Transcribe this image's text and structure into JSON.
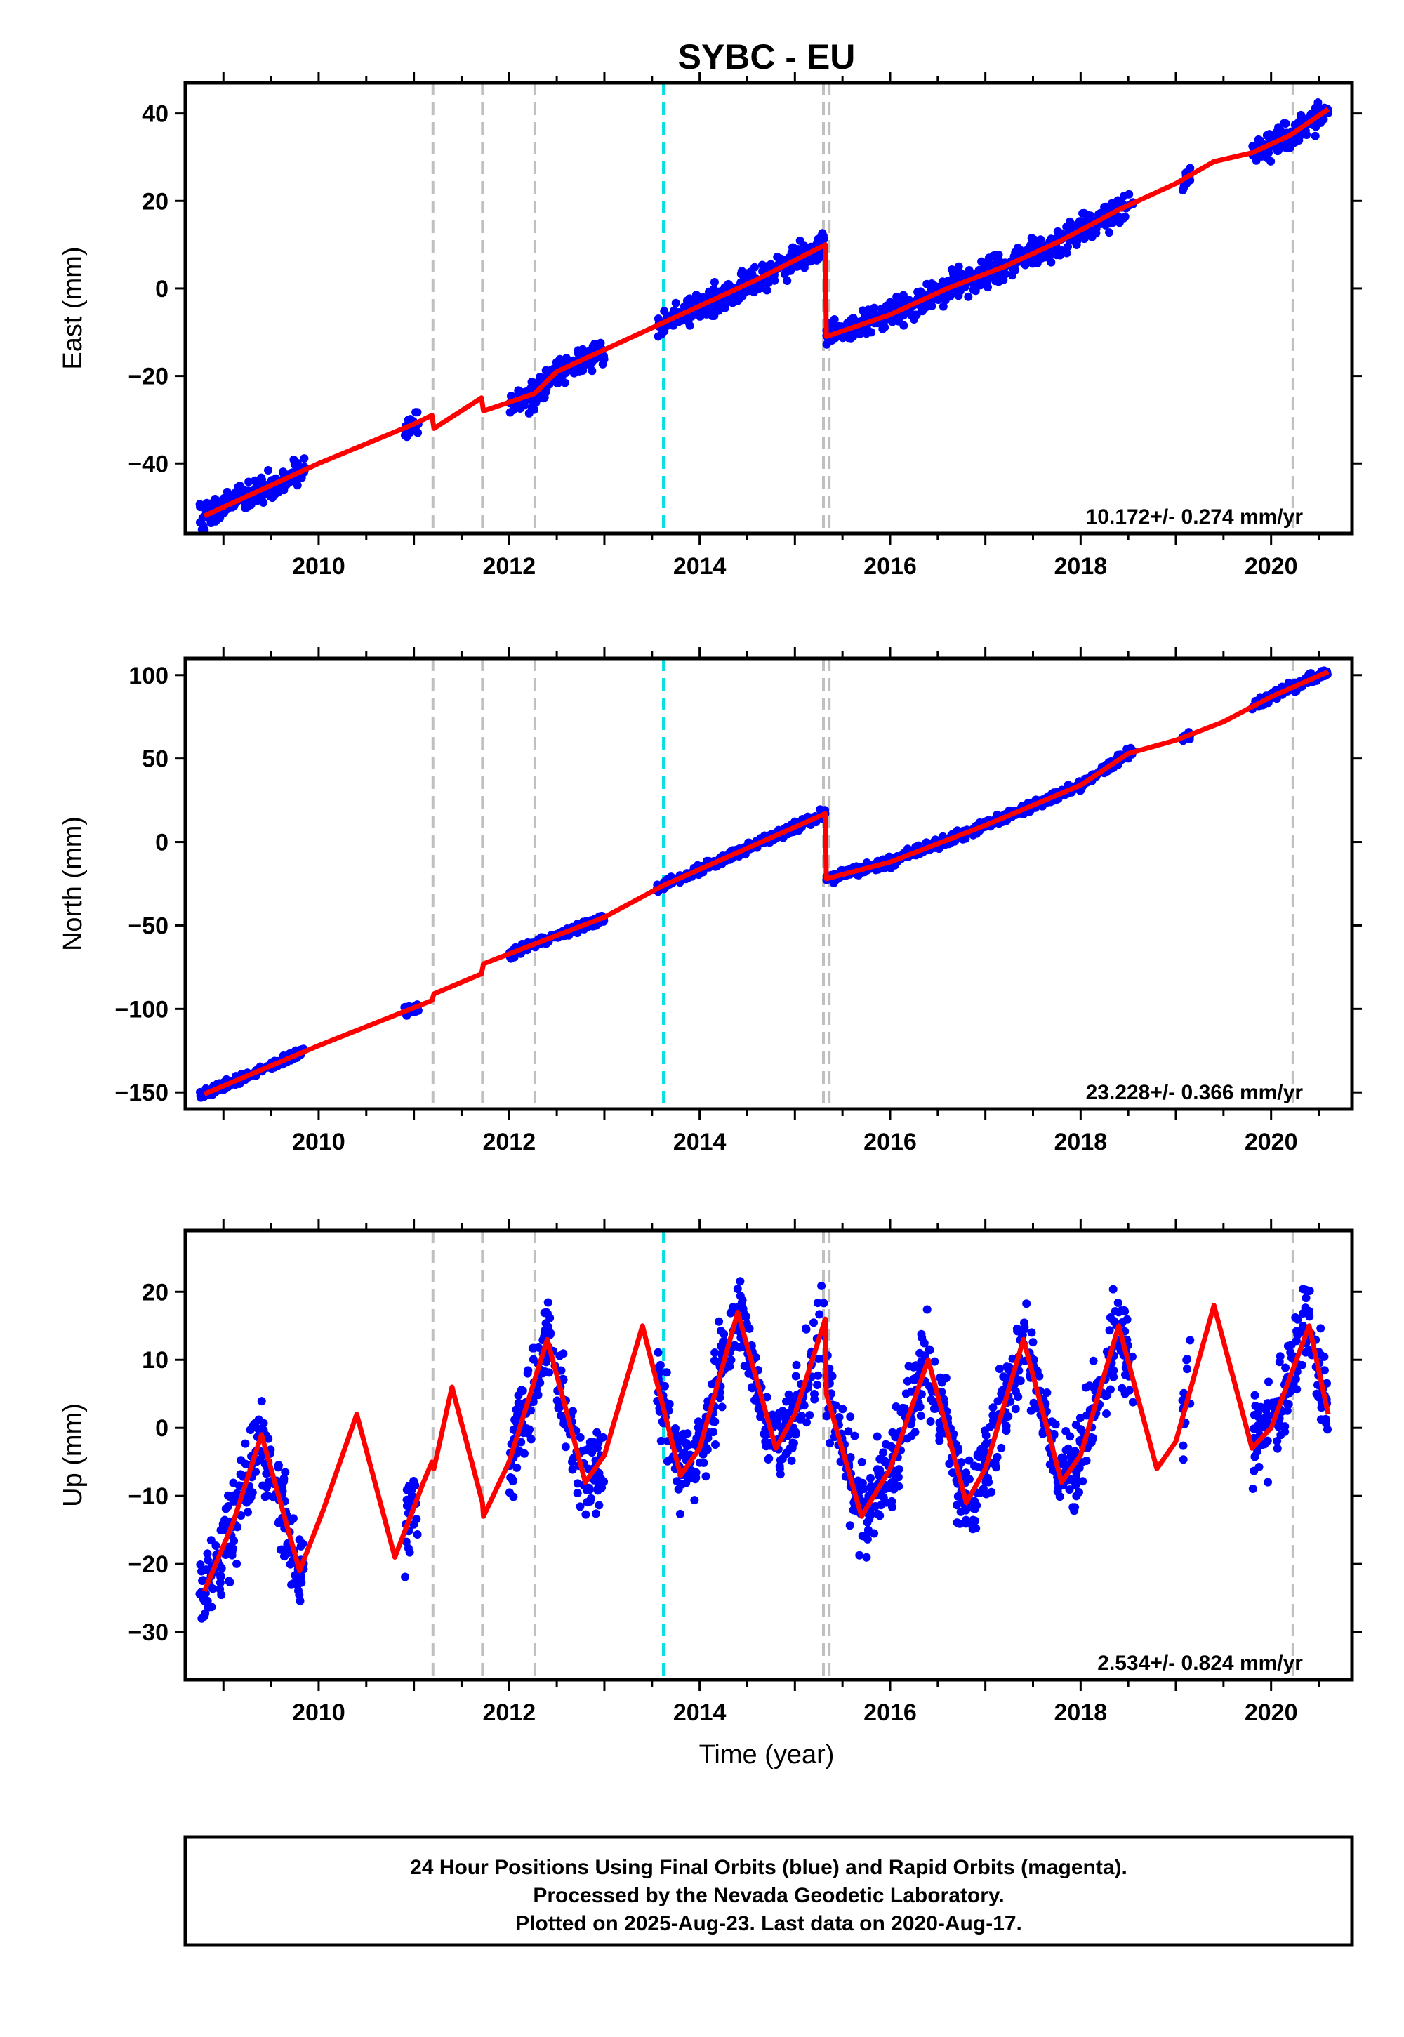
{
  "title": "SYBC - EU",
  "xlabel": "Time (year)",
  "footer": {
    "line1": "24 Hour Positions Using Final Orbits (blue) and Rapid Orbits (magenta).",
    "line2": "Processed by the Nevada Geodetic Laboratory.",
    "line3": "Plotted on 2025-Aug-23. Last data on 2020-Aug-17."
  },
  "colors": {
    "data": "#0000ff",
    "model": "#ff0000",
    "step_gray": "#c0c0c0",
    "step_cyan": "#00e0e0"
  },
  "chart_data": [
    {
      "type": "scatter",
      "component": "east",
      "ylabel": "East (mm)",
      "xlim": [
        2008.6,
        2020.85
      ],
      "ylim": [
        -56,
        47
      ],
      "xticks": [
        2010,
        2012,
        2014,
        2016,
        2018,
        2020
      ],
      "yticks": [
        -40,
        -20,
        0,
        20,
        40
      ],
      "rate_text": "10.172+/- 0.274 mm/yr",
      "steps_gray": [
        2011.2,
        2011.72,
        2012.27,
        2015.3,
        2015.36,
        2020.23
      ],
      "steps_cyan": [
        2013.62
      ],
      "model": {
        "x": [
          2008.8,
          2009.5,
          2010.0,
          2011.0,
          2011.19,
          2011.21,
          2011.71,
          2011.73,
          2012.27,
          2012.5,
          2013.0,
          2013.6,
          2014.0,
          2014.6,
          2015.32,
          2015.33,
          2016.0,
          2016.6,
          2017.2,
          2017.8,
          2018.4,
          2019.0,
          2019.4,
          2019.8,
          2020.2,
          2020.6
        ],
        "y": [
          -52,
          -45,
          -40,
          -31,
          -29,
          -32,
          -25,
          -28,
          -24,
          -19,
          -14,
          -8,
          -4,
          2,
          10,
          -11,
          -6,
          0,
          5,
          11,
          18,
          24,
          29,
          31,
          35,
          41
        ]
      },
      "data_ranges": [
        [
          2008.75,
          2009.85
        ],
        [
          2010.9,
          2011.05
        ],
        [
          2012.0,
          2013.0
        ],
        [
          2013.55,
          2015.32
        ],
        [
          2015.33,
          2018.55
        ],
        [
          2019.07,
          2019.15
        ],
        [
          2019.8,
          2020.6
        ]
      ],
      "noise": 2.2
    },
    {
      "type": "scatter",
      "component": "north",
      "ylabel": "North (mm)",
      "xlim": [
        2008.6,
        2020.85
      ],
      "ylim": [
        -160,
        110
      ],
      "xticks": [
        2010,
        2012,
        2014,
        2016,
        2018,
        2020
      ],
      "yticks": [
        -150,
        -100,
        -50,
        0,
        50,
        100
      ],
      "rate_text": "23.228+/- 0.366 mm/yr",
      "steps_gray": [
        2011.2,
        2011.72,
        2012.27,
        2015.3,
        2015.36,
        2020.23
      ],
      "steps_cyan": [
        2013.62
      ],
      "model": {
        "x": [
          2008.8,
          2010.0,
          2011.19,
          2011.21,
          2011.71,
          2011.73,
          2013.0,
          2013.62,
          2015.32,
          2015.33,
          2016.0,
          2017.0,
          2018.0,
          2018.5,
          2019.0,
          2019.5,
          2020.0,
          2020.6
        ],
        "y": [
          -151,
          -122,
          -95,
          -91,
          -79,
          -73,
          -45,
          -26,
          17,
          -22,
          -12,
          10,
          34,
          53,
          61,
          72,
          87,
          102
        ]
      },
      "data_ranges": [
        [
          2008.75,
          2009.85
        ],
        [
          2010.9,
          2011.05
        ],
        [
          2012.0,
          2013.0
        ],
        [
          2013.55,
          2015.32
        ],
        [
          2015.33,
          2018.55
        ],
        [
          2019.07,
          2019.15
        ],
        [
          2019.8,
          2020.6
        ]
      ],
      "noise": 2.0
    },
    {
      "type": "scatter",
      "component": "up",
      "ylabel": "Up (mm)",
      "xlim": [
        2008.6,
        2020.85
      ],
      "ylim": [
        -37,
        29
      ],
      "xticks": [
        2010,
        2012,
        2014,
        2016,
        2018,
        2020
      ],
      "yticks": [
        -30,
        -20,
        -10,
        0,
        10,
        20
      ],
      "rate_text": "2.534+/- 0.824 mm/yr",
      "steps_gray": [
        2011.2,
        2011.72,
        2012.27,
        2015.3,
        2015.36,
        2020.23
      ],
      "steps_cyan": [
        2013.62
      ],
      "model": {
        "x": [
          2008.8,
          2009.1,
          2009.4,
          2009.8,
          2010.05,
          2010.4,
          2010.8,
          2011.1,
          2011.19,
          2011.21,
          2011.4,
          2011.72,
          2011.73,
          2012.0,
          2012.4,
          2012.8,
          2013.0,
          2013.4,
          2013.8,
          2014.0,
          2014.4,
          2014.8,
          2015.0,
          2015.32,
          2015.33,
          2015.7,
          2016.0,
          2016.4,
          2016.8,
          2017.0,
          2017.4,
          2017.8,
          2018.0,
          2018.4,
          2018.8,
          2019.0,
          2019.4,
          2019.8,
          2020.0,
          2020.4,
          2020.6
        ],
        "y": [
          -24,
          -14,
          -1,
          -21,
          -12,
          2,
          -19,
          -8,
          -5,
          -6,
          6,
          -11,
          -13,
          -5,
          13,
          -8,
          -4,
          15,
          -7,
          -3,
          17,
          -3,
          2,
          16,
          5,
          -13,
          -6,
          10,
          -11,
          -6,
          13,
          -8,
          -4,
          15,
          -6,
          -2,
          18,
          -3,
          0,
          15,
          2
        ]
      },
      "data_ranges": [
        [
          2008.75,
          2009.85
        ],
        [
          2010.9,
          2011.05
        ],
        [
          2012.0,
          2013.0
        ],
        [
          2013.55,
          2015.32
        ],
        [
          2015.33,
          2018.55
        ],
        [
          2019.07,
          2019.15
        ],
        [
          2019.8,
          2020.6
        ]
      ],
      "noise": 4.5
    }
  ]
}
